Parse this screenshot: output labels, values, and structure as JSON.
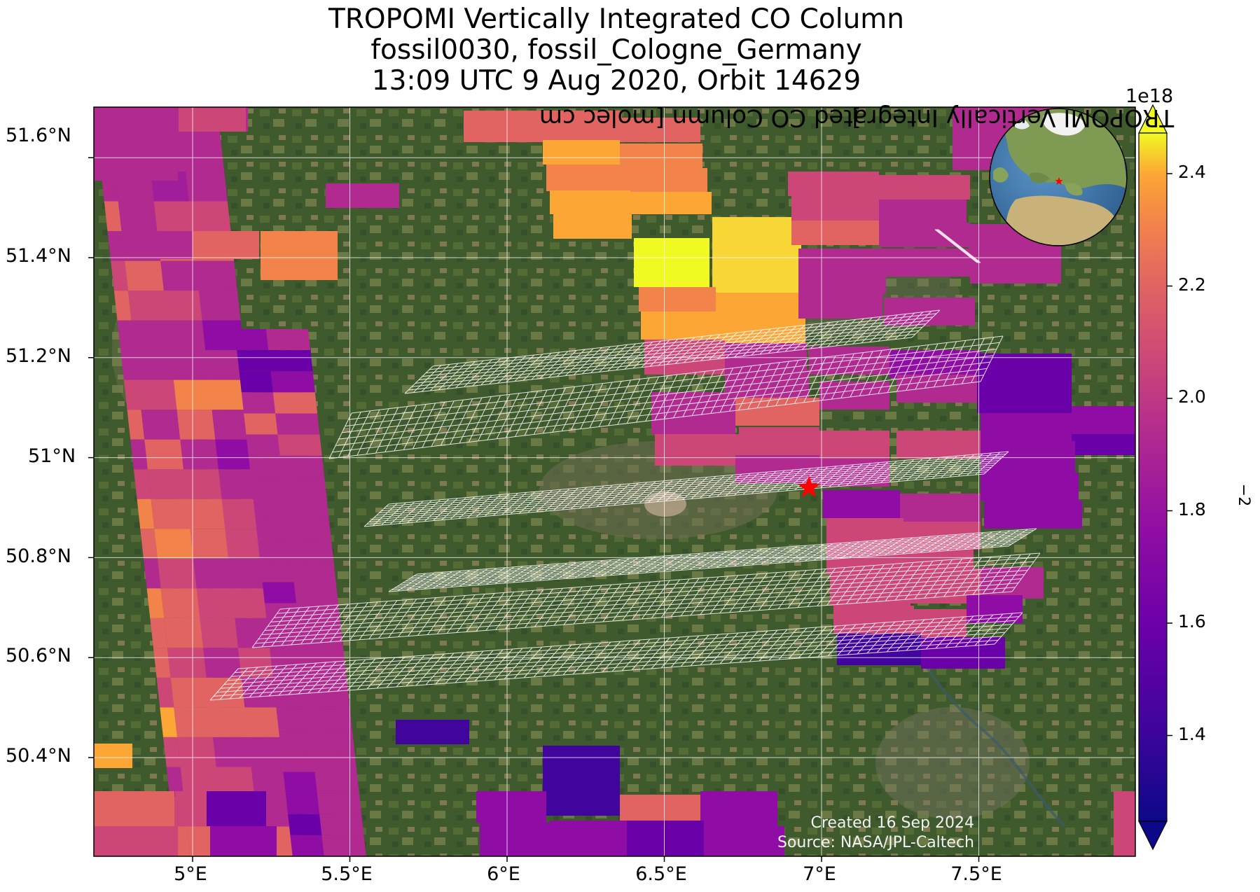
{
  "title": {
    "line1": "TROPOMI Vertically Integrated CO Column",
    "line2": "fossil0030, fossil_Cologne_Germany",
    "line3": "13:09 UTC 9 Aug 2020, Orbit 14629"
  },
  "axes": {
    "lat_ticks": [
      "51.6°N",
      "51.4°N",
      "51.2°N",
      "51°N",
      "50.8°N",
      "50.6°N",
      "50.4°N"
    ],
    "lon_ticks": [
      "5°E",
      "5.5°E",
      "6°E",
      "6.5°E",
      "7°E",
      "7.5°E"
    ]
  },
  "colorbar": {
    "label": "TROPOMI Vertically Integrated CO Column [molec cm",
    "label_sup": "−2",
    "label_end": "]",
    "multiplier": "1e18",
    "ticks": [
      "2.4",
      "2.2",
      "2.0",
      "1.8",
      "1.6",
      "1.4"
    ],
    "colormap": "plasma",
    "range": [
      1.22,
      2.48
    ],
    "extend": "both"
  },
  "credit": {
    "created": "Created 16 Sep 2024",
    "source": "Source: NASA/JPL-Caltech"
  },
  "map": {
    "lon_range": [
      4.7,
      8.0
    ],
    "lat_range": [
      50.2,
      51.7
    ],
    "target_marker": "red-star",
    "target_lon": 6.96,
    "target_lat": 50.94,
    "grid_color": "#ffffff",
    "inset_globe": "orthographic-europe",
    "colors": {
      "background_land": "#3f5a2c",
      "star": "#ff0000"
    }
  }
}
